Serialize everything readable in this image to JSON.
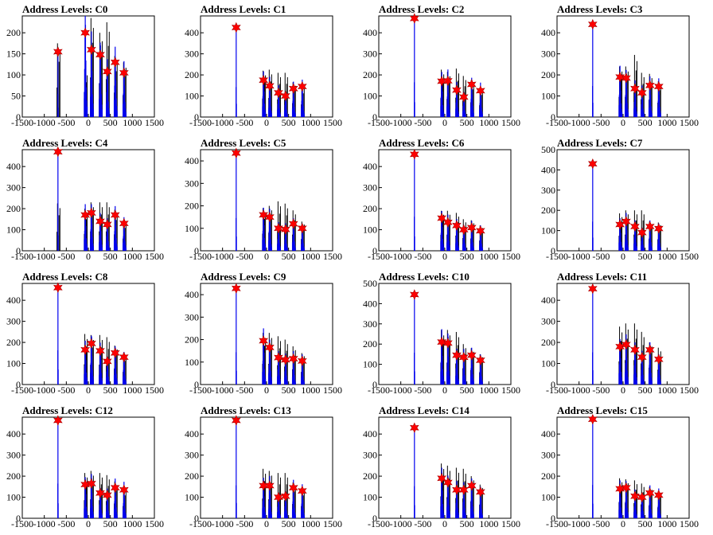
{
  "chart_data": [
    {
      "type": "bar",
      "title": "Address Levels: C0",
      "xlim": [
        -1500,
        1500
      ],
      "ylim": [
        0,
        240
      ],
      "yticks": [
        0,
        50,
        100,
        150,
        200
      ],
      "xticks": [
        -1500,
        -1000,
        -500,
        0,
        500,
        1000,
        1500
      ],
      "peak": [
        -690,
        -70,
        70,
        270,
        430,
        610,
        810
      ],
      "peak_val": [
        155,
        200,
        160,
        148,
        108,
        130,
        105
      ],
      "black": [
        [
          -700,
          175
        ],
        [
          -80,
          110
        ],
        [
          60,
          235
        ],
        [
          260,
          200
        ],
        [
          420,
          225
        ],
        [
          600,
          145
        ],
        [
          800,
          130
        ]
      ]
    },
    {
      "type": "bar",
      "title": "Address Levels: C1",
      "xlim": [
        -1500,
        1500
      ],
      "ylim": [
        0,
        480
      ],
      "yticks": [
        0,
        100,
        200,
        300,
        400
      ],
      "xticks": [
        -1500,
        -1000,
        -500,
        0,
        500,
        1000,
        1500
      ],
      "peak": [
        -690,
        -70,
        70,
        270,
        430,
        610,
        810
      ],
      "peak_val": [
        425,
        175,
        148,
        115,
        100,
        135,
        145
      ],
      "black": [
        [
          -80,
          220
        ],
        [
          60,
          225
        ],
        [
          260,
          210
        ],
        [
          420,
          210
        ],
        [
          600,
          165
        ],
        [
          800,
          150
        ]
      ]
    },
    {
      "type": "bar",
      "title": "Address Levels: C2",
      "xlim": [
        -1500,
        1500
      ],
      "ylim": [
        0,
        480
      ],
      "yticks": [
        0,
        100,
        200,
        300,
        400
      ],
      "xticks": [
        -1500,
        -1000,
        -500,
        0,
        500,
        1000,
        1500
      ],
      "peak": [
        -690,
        -70,
        70,
        270,
        430,
        610,
        810
      ],
      "peak_val": [
        468,
        170,
        172,
        128,
        95,
        155,
        125
      ],
      "black": [
        [
          -80,
          225
        ],
        [
          60,
          215
        ],
        [
          260,
          230
        ],
        [
          420,
          195
        ],
        [
          600,
          175
        ],
        [
          800,
          140
        ]
      ]
    },
    {
      "type": "bar",
      "title": "Address Levels: C3",
      "xlim": [
        -1500,
        1500
      ],
      "ylim": [
        0,
        480
      ],
      "yticks": [
        0,
        100,
        200,
        300,
        400
      ],
      "xticks": [
        -1500,
        -1000,
        -500,
        0,
        500,
        1000,
        1500
      ],
      "peak": [
        -690,
        -70,
        70,
        270,
        430,
        610,
        810
      ],
      "peak_val": [
        440,
        190,
        185,
        135,
        115,
        150,
        145
      ],
      "black": [
        [
          -80,
          240
        ],
        [
          60,
          240
        ],
        [
          260,
          295
        ],
        [
          420,
          210
        ],
        [
          600,
          205
        ],
        [
          800,
          170
        ]
      ]
    },
    {
      "type": "bar",
      "title": "Address Levels: C4",
      "xlim": [
        -1500,
        1500
      ],
      "ylim": [
        0,
        480
      ],
      "yticks": [
        0,
        100,
        200,
        300,
        400
      ],
      "xticks": [
        -1500,
        -1000,
        -500,
        0,
        500,
        1000,
        1500
      ],
      "peak": [
        -690,
        -70,
        70,
        270,
        430,
        610,
        810
      ],
      "peak_val": [
        470,
        170,
        180,
        140,
        125,
        170,
        130
      ],
      "black": [
        [
          -700,
          225
        ],
        [
          -80,
          200
        ],
        [
          60,
          230
        ],
        [
          260,
          230
        ],
        [
          420,
          230
        ],
        [
          600,
          195
        ],
        [
          800,
          145
        ]
      ]
    },
    {
      "type": "bar",
      "title": "Address Levels: C5",
      "xlim": [
        -1500,
        1500
      ],
      "ylim": [
        0,
        450
      ],
      "yticks": [
        0,
        100,
        200,
        300,
        400
      ],
      "xticks": [
        -1500,
        -1000,
        -500,
        0,
        500,
        1000,
        1500
      ],
      "peak": [
        -690,
        -70,
        70,
        270,
        430,
        610,
        810
      ],
      "peak_val": [
        435,
        160,
        150,
        100,
        95,
        120,
        100
      ],
      "black": [
        [
          -80,
          190
        ],
        [
          60,
          200
        ],
        [
          260,
          220
        ],
        [
          420,
          210
        ],
        [
          600,
          180
        ],
        [
          800,
          130
        ]
      ]
    },
    {
      "type": "bar",
      "title": "Address Levels: C6",
      "xlim": [
        -1500,
        1500
      ],
      "ylim": [
        0,
        480
      ],
      "yticks": [
        0,
        100,
        200,
        300,
        400
      ],
      "xticks": [
        -1500,
        -1000,
        -500,
        0,
        500,
        1000,
        1500
      ],
      "peak": [
        -690,
        -70,
        70,
        270,
        430,
        610,
        810
      ],
      "peak_val": [
        458,
        155,
        135,
        120,
        100,
        110,
        95
      ],
      "black": [
        [
          -80,
          190
        ],
        [
          60,
          190
        ],
        [
          260,
          180
        ],
        [
          420,
          150
        ],
        [
          600,
          145
        ],
        [
          800,
          120
        ]
      ]
    },
    {
      "type": "bar",
      "title": "Address Levels: C7",
      "xlim": [
        -1500,
        1500
      ],
      "ylim": [
        0,
        500
      ],
      "yticks": [
        0,
        100,
        200,
        300,
        400,
        500
      ],
      "xticks": [
        -1500,
        -1000,
        -500,
        0,
        500,
        1000,
        1500
      ],
      "peak": [
        -690,
        -70,
        70,
        270,
        430,
        610,
        810
      ],
      "peak_val": [
        430,
        130,
        145,
        120,
        90,
        120,
        110
      ],
      "black": [
        [
          -80,
          185
        ],
        [
          60,
          200
        ],
        [
          260,
          200
        ],
        [
          420,
          200
        ],
        [
          600,
          145
        ],
        [
          800,
          140
        ]
      ]
    },
    {
      "type": "bar",
      "title": "Address Levels: C8",
      "xlim": [
        -1500,
        1500
      ],
      "ylim": [
        0,
        480
      ],
      "yticks": [
        0,
        100,
        200,
        300,
        400
      ],
      "xticks": [
        -1500,
        -1000,
        -500,
        0,
        500,
        1000,
        1500
      ],
      "peak": [
        -690,
        -70,
        70,
        270,
        430,
        610,
        810
      ],
      "peak_val": [
        460,
        165,
        195,
        160,
        110,
        150,
        130
      ],
      "black": [
        [
          -80,
          240
        ],
        [
          60,
          235
        ],
        [
          260,
          235
        ],
        [
          420,
          225
        ],
        [
          600,
          185
        ],
        [
          800,
          150
        ]
      ]
    },
    {
      "type": "bar",
      "title": "Address Levels: C9",
      "xlim": [
        -1500,
        1500
      ],
      "ylim": [
        0,
        450
      ],
      "yticks": [
        0,
        100,
        200,
        300,
        400
      ],
      "xticks": [
        -1500,
        -1000,
        -500,
        0,
        500,
        1000,
        1500
      ],
      "peak": [
        -690,
        -70,
        70,
        270,
        430,
        610,
        810
      ],
      "peak_val": [
        428,
        195,
        165,
        120,
        110,
        115,
        105
      ],
      "black": [
        [
          -80,
          230
        ],
        [
          60,
          230
        ],
        [
          260,
          215
        ],
        [
          420,
          200
        ],
        [
          600,
          170
        ],
        [
          800,
          140
        ]
      ]
    },
    {
      "type": "bar",
      "title": "Address Levels: C10",
      "xlim": [
        -1500,
        1500
      ],
      "ylim": [
        0,
        500
      ],
      "yticks": [
        0,
        100,
        200,
        300,
        400,
        500
      ],
      "xticks": [
        -1500,
        -1000,
        -500,
        0,
        500,
        1000,
        1500
      ],
      "peak": [
        -690,
        -70,
        70,
        270,
        430,
        610,
        810
      ],
      "peak_val": [
        445,
        210,
        205,
        145,
        135,
        145,
        120
      ],
      "black": [
        [
          -80,
          270
        ],
        [
          60,
          270
        ],
        [
          260,
          260
        ],
        [
          420,
          200
        ],
        [
          600,
          180
        ],
        [
          800,
          150
        ]
      ]
    },
    {
      "type": "bar",
      "title": "Address Levels: C11",
      "xlim": [
        -1500,
        1500
      ],
      "ylim": [
        0,
        480
      ],
      "yticks": [
        0,
        100,
        200,
        300,
        400
      ],
      "xticks": [
        -1500,
        -1000,
        -500,
        0,
        500,
        1000,
        1500
      ],
      "peak": [
        -690,
        -70,
        70,
        270,
        430,
        610,
        810
      ],
      "peak_val": [
        455,
        180,
        190,
        165,
        130,
        165,
        120
      ],
      "black": [
        [
          -80,
          275
        ],
        [
          60,
          290
        ],
        [
          260,
          290
        ],
        [
          420,
          250
        ],
        [
          600,
          200
        ],
        [
          800,
          175
        ]
      ]
    },
    {
      "type": "bar",
      "title": "Address Levels: C12",
      "xlim": [
        -1500,
        1500
      ],
      "ylim": [
        0,
        480
      ],
      "yticks": [
        0,
        100,
        200,
        300,
        400
      ],
      "xticks": [
        -1500,
        -1000,
        -500,
        0,
        500,
        1000,
        1500
      ],
      "peak": [
        -690,
        -70,
        70,
        270,
        430,
        610,
        810
      ],
      "peak_val": [
        465,
        160,
        165,
        120,
        110,
        145,
        135
      ],
      "black": [
        [
          -80,
          215
        ],
        [
          60,
          225
        ],
        [
          260,
          215
        ],
        [
          420,
          205
        ],
        [
          600,
          175
        ],
        [
          800,
          145
        ]
      ]
    },
    {
      "type": "bar",
      "title": "Address Levels: C13",
      "xlim": [
        -1500,
        1500
      ],
      "ylim": [
        0,
        480
      ],
      "yticks": [
        0,
        100,
        200,
        300,
        400
      ],
      "xticks": [
        -1500,
        -1000,
        -500,
        0,
        500,
        1000,
        1500
      ],
      "peak": [
        -690,
        -70,
        70,
        270,
        430,
        610,
        810
      ],
      "peak_val": [
        465,
        155,
        155,
        100,
        105,
        145,
        130
      ],
      "black": [
        [
          -80,
          235
        ],
        [
          60,
          225
        ],
        [
          260,
          215
        ],
        [
          420,
          215
        ],
        [
          600,
          170
        ],
        [
          800,
          145
        ]
      ]
    },
    {
      "type": "bar",
      "title": "Address Levels: C14",
      "xlim": [
        -1500,
        1500
      ],
      "ylim": [
        0,
        480
      ],
      "yticks": [
        0,
        100,
        200,
        300,
        400
      ],
      "xticks": [
        -1500,
        -1000,
        -500,
        0,
        500,
        1000,
        1500
      ],
      "peak": [
        -690,
        -70,
        70,
        270,
        430,
        610,
        810
      ],
      "peak_val": [
        430,
        190,
        170,
        135,
        135,
        155,
        125
      ],
      "black": [
        [
          -80,
          260
        ],
        [
          60,
          250
        ],
        [
          260,
          240
        ],
        [
          420,
          235
        ],
        [
          600,
          200
        ],
        [
          800,
          160
        ]
      ]
    },
    {
      "type": "bar",
      "title": "Address Levels: C15",
      "xlim": [
        -1500,
        1500
      ],
      "ylim": [
        0,
        480
      ],
      "yticks": [
        0,
        100,
        200,
        300,
        400
      ],
      "xticks": [
        -1500,
        -1000,
        -500,
        0,
        500,
        1000,
        1500
      ],
      "peak": [
        -690,
        -70,
        70,
        270,
        430,
        610,
        810
      ],
      "peak_val": [
        470,
        140,
        145,
        105,
        100,
        120,
        110
      ],
      "black": [
        [
          -80,
          190
        ],
        [
          60,
          185
        ],
        [
          260,
          180
        ],
        [
          420,
          165
        ],
        [
          600,
          150
        ],
        [
          800,
          130
        ]
      ]
    }
  ],
  "colors": {
    "blue": "#0000ee",
    "black": "#000000",
    "marker": "#ff0000",
    "marker_edge": "#aa0000"
  }
}
